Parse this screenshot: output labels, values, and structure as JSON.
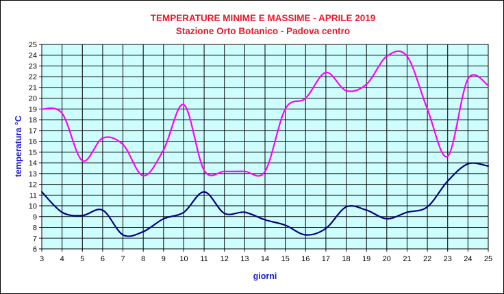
{
  "chart_data": {
    "type": "line",
    "title": "TEMPERATURE MINIME E MASSIME  - APRILE 2019",
    "subtitle": "Stazione Orto Botanico - Padova centro",
    "xlabel": "giorni",
    "ylabel": "temperatura °C",
    "x": [
      3,
      4,
      5,
      6,
      7,
      8,
      9,
      10,
      11,
      12,
      13,
      14,
      15,
      16,
      17,
      18,
      19,
      20,
      21,
      22,
      23,
      24,
      25
    ],
    "xlim": [
      3,
      25
    ],
    "ylim": [
      6,
      25
    ],
    "x_ticks": [
      3,
      4,
      5,
      6,
      7,
      8,
      9,
      10,
      11,
      12,
      13,
      14,
      15,
      16,
      17,
      18,
      19,
      20,
      21,
      22,
      23,
      24,
      25
    ],
    "y_ticks": [
      6,
      7,
      8,
      9,
      10,
      11,
      12,
      13,
      14,
      15,
      16,
      17,
      18,
      19,
      20,
      21,
      22,
      23,
      24,
      25
    ],
    "grid": true,
    "legend": "none",
    "colors": {
      "plot_background": "#cdfdfd",
      "grid": "#000000",
      "max_series": "#ff00ff",
      "min_series": "#000080",
      "title": "#e8182a",
      "axis_label": "#1a1ad6"
    },
    "series": [
      {
        "values": [
          19.0,
          18.6,
          14.2,
          16.3,
          15.7,
          12.8,
          15.2,
          19.4,
          13.3,
          13.2,
          13.2,
          13.2,
          19.0,
          20.0,
          22.4,
          20.7,
          21.3,
          23.9,
          23.9,
          19.0,
          14.6,
          21.8,
          21.2
        ]
      },
      {
        "values": [
          11.3,
          9.4,
          9.1,
          9.6,
          7.3,
          7.6,
          8.8,
          9.4,
          11.3,
          9.3,
          9.4,
          8.7,
          8.2,
          7.3,
          7.9,
          9.9,
          9.6,
          8.8,
          9.4,
          9.9,
          12.3,
          13.9,
          13.7
        ]
      }
    ]
  }
}
